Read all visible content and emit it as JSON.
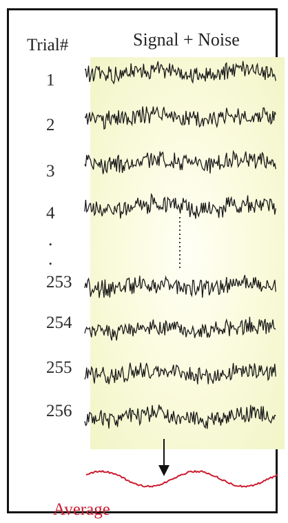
{
  "header": {
    "trial_label": "Trial#",
    "signal_label": "Signal + Noise"
  },
  "trials": [
    {
      "label": "1"
    },
    {
      "label": "2"
    },
    {
      "label": "3"
    },
    {
      "label": "4"
    },
    {
      "label": "253"
    },
    {
      "label": "254"
    },
    {
      "label": "255"
    },
    {
      "label": "256"
    }
  ],
  "ellipsis": {
    "dot1": ".",
    "dot2": "."
  },
  "average": {
    "label": "Average"
  },
  "colors": {
    "trace": "#1a1a1a",
    "average": "#cc1a2e",
    "panel": "#f6f8d2",
    "border": "#111111"
  }
}
